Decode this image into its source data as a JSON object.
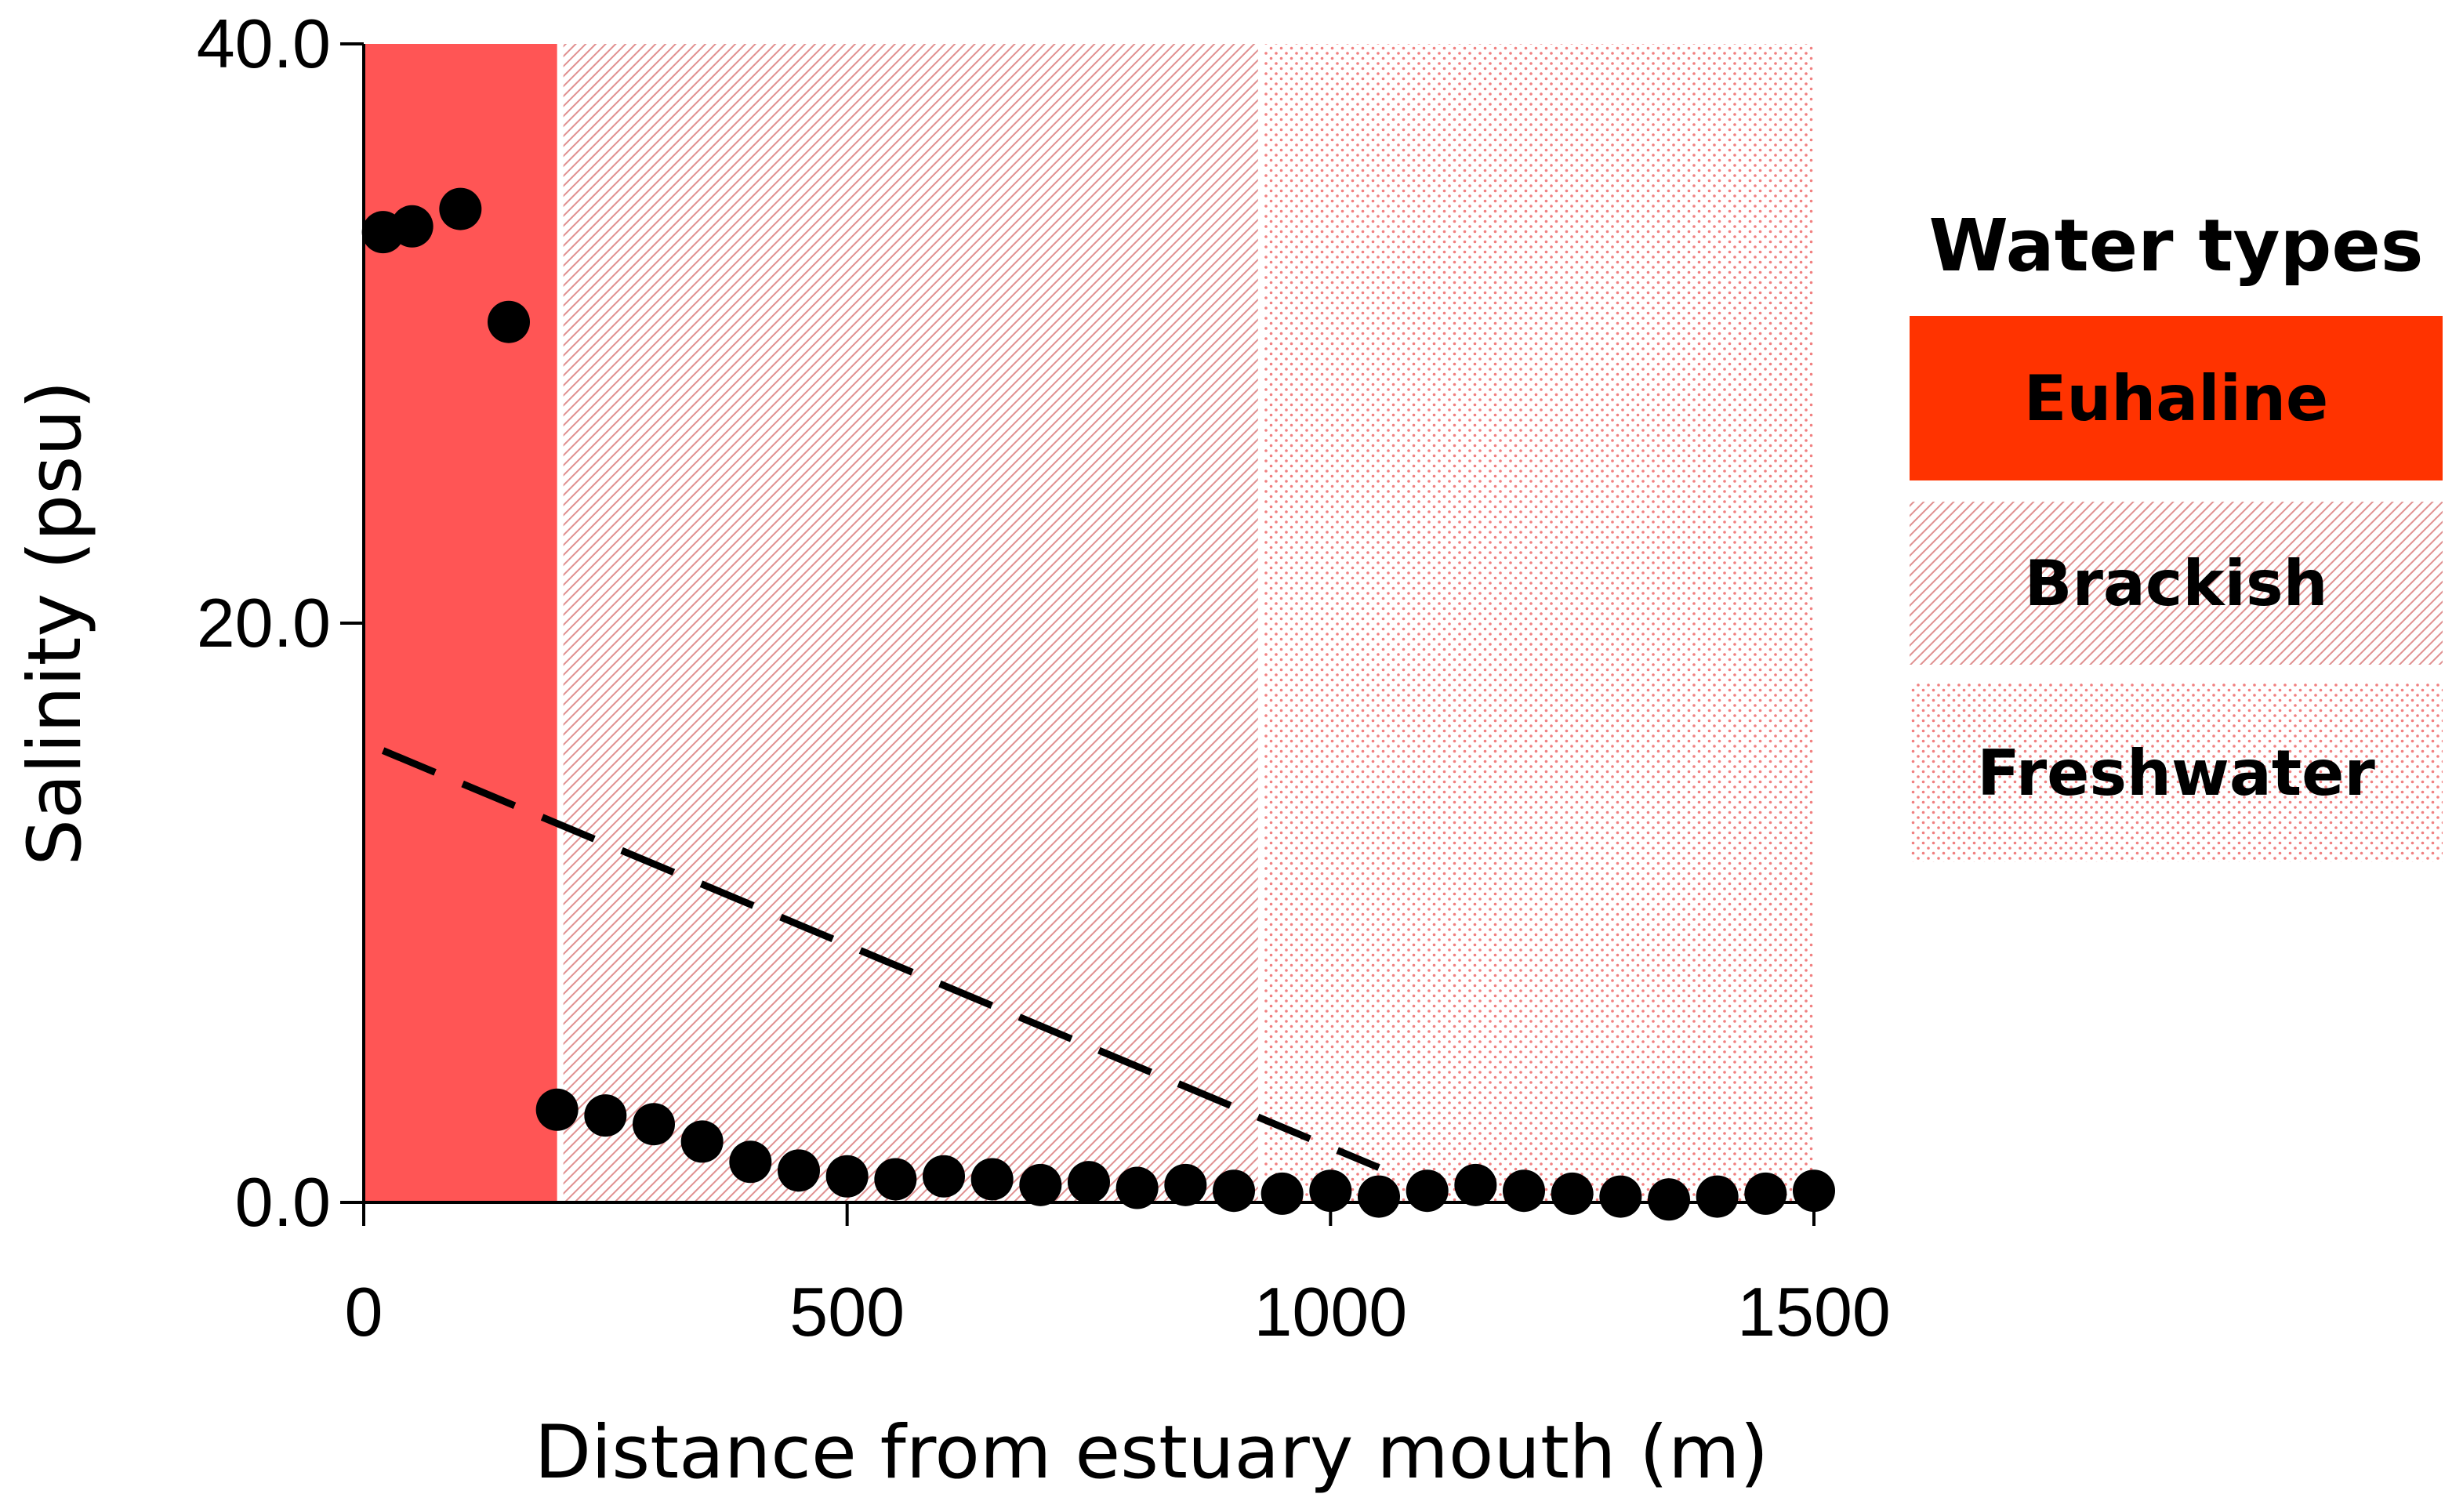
{
  "chart_data": {
    "type": "scatter",
    "xlabel": "Distance from estuary mouth (m)",
    "ylabel": "Salinity (psu)",
    "xlim": [
      0,
      1500
    ],
    "ylim": [
      0,
      40
    ],
    "x_ticks": [
      "0",
      "500",
      "1000",
      "1500"
    ],
    "y_ticks": [
      "0.0",
      "20.0",
      "40.0"
    ],
    "grid": false,
    "legend_title": "Water types",
    "legend_position": "right",
    "zones": [
      {
        "name": "Euhaline",
        "x_start": 0,
        "x_end": 200,
        "fill": "solid",
        "color": "#ff5555",
        "legend_color": "#ff3300"
      },
      {
        "name": "Brackish",
        "x_start": 200,
        "x_end": 925,
        "fill": "diagonal-hatch",
        "color": "#e8a0a0"
      },
      {
        "name": "Freshwater",
        "x_start": 925,
        "x_end": 1500,
        "fill": "dots",
        "color": "#f08080"
      }
    ],
    "series": [
      {
        "type": "scatter",
        "x": [
          20,
          50,
          100,
          150,
          200,
          250,
          300,
          350,
          400,
          450,
          500,
          550,
          600,
          650,
          700,
          750,
          800,
          850,
          900,
          950,
          1000,
          1050,
          1100,
          1150,
          1200,
          1250,
          1300,
          1350,
          1400,
          1450,
          1500
        ],
        "y": [
          33.5,
          33.7,
          34.3,
          30.4,
          3.2,
          3.0,
          2.7,
          2.1,
          1.4,
          1.1,
          0.9,
          0.8,
          0.9,
          0.8,
          0.6,
          0.7,
          0.5,
          0.6,
          0.4,
          0.3,
          0.4,
          0.2,
          0.4,
          0.6,
          0.4,
          0.3,
          0.2,
          0.1,
          0.2,
          0.3,
          0.4
        ],
        "color": "#000000"
      },
      {
        "type": "line",
        "style": "dashed",
        "x": [
          20,
          1050
        ],
        "y": [
          15.6,
          1.2
        ],
        "color": "#000000"
      }
    ]
  }
}
